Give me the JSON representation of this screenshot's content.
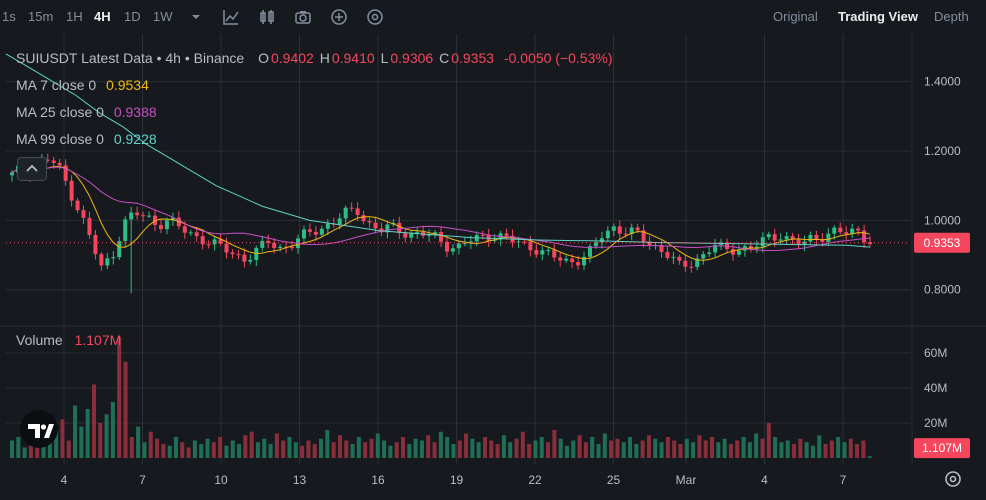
{
  "toolbar": {
    "intervals": [
      "1s",
      "15m",
      "1H",
      "4H",
      "1D",
      "1W"
    ],
    "active_interval": "4H",
    "icons": [
      "chevron-down-icon",
      "indicator-line-icon",
      "candle-icon",
      "camera-icon",
      "plus-circle-icon",
      "settings-circle-icon"
    ],
    "views": [
      "Original",
      "Trading View",
      "Depth"
    ],
    "active_view": "Trading View"
  },
  "legend": {
    "pair": "SUIUSDT Latest Data • 4h • Binance",
    "o_label": "O",
    "o": "0.9402",
    "h_label": "H",
    "h": "0.9410",
    "l_label": "L",
    "l": "0.9306",
    "c_label": "C",
    "c": "0.9353",
    "change": "-0.0050 (−0.53%)",
    "ma7_label": "MA 7 close 0",
    "ma7": "0.9534",
    "ma25_label": "MA 25 close 0",
    "ma25": "0.9388",
    "ma99_label": "MA 99 close 0",
    "ma99": "0.9228",
    "volume_label": "Volume",
    "volume": "1.107M"
  },
  "colors": {
    "background": "#161a1e",
    "up": "#2ebd85",
    "down": "#f6465d",
    "ma7": "#f0b90b",
    "ma25": "#c74ec7",
    "ma99": "#5fd3c8",
    "grid": "#2b2f36"
  },
  "chart_data": [
    {
      "type": "candlestick",
      "price_axis": {
        "ticks": [
          "1.4000",
          "1.2000",
          "1.0000",
          "0.8000"
        ],
        "tick_values": [
          1.4,
          1.2,
          1.0,
          0.8
        ],
        "range": [
          0.73,
          1.52
        ]
      },
      "current_price": "0.9353",
      "x_axis": {
        "ticks": [
          "4",
          "7",
          "10",
          "13",
          "16",
          "19",
          "22",
          "25",
          "Mar",
          "4",
          "7"
        ]
      },
      "close_path": [
        1.13,
        1.15,
        1.14,
        1.18,
        1.16,
        1.1,
        1.03,
        0.95,
        0.86,
        0.9,
        0.99,
        1.02,
        1.01,
        0.99,
        1.0,
        0.98,
        0.96,
        0.95,
        0.93,
        0.92,
        0.9,
        0.89,
        0.91,
        0.94,
        0.92,
        0.93,
        0.95,
        0.97,
        0.98,
        1.0,
        1.02,
        1.03,
        0.99,
        0.97,
        0.98,
        0.97,
        0.96,
        0.96,
        0.95,
        0.93,
        0.92,
        0.94,
        0.95,
        0.96,
        0.95,
        0.94,
        0.93,
        0.92,
        0.9,
        0.89,
        0.88,
        0.89,
        0.91,
        0.96,
        0.98,
        0.97,
        0.96,
        0.94,
        0.92,
        0.9,
        0.86,
        0.88,
        0.9,
        0.93,
        0.91,
        0.92,
        0.92,
        0.93,
        0.95,
        0.96,
        0.94,
        0.93,
        0.95,
        0.96,
        0.97,
        0.96,
        0.97,
        0.94
      ],
      "ma99_path": [
        1.48,
        1.44,
        1.4,
        1.36,
        1.31,
        1.27,
        1.22,
        1.18,
        1.14,
        1.1,
        1.07,
        1.04,
        1.02,
        1.0,
        0.99,
        0.98,
        0.97,
        0.965,
        0.96,
        0.955,
        0.95,
        0.948,
        0.945,
        0.943,
        0.942,
        0.941,
        0.94,
        0.938,
        0.936,
        0.935,
        0.934,
        0.933,
        0.932,
        0.931,
        0.93,
        0.929,
        0.928,
        0.9228
      ]
    },
    {
      "type": "bar",
      "name": "Volume",
      "axis": {
        "ticks": [
          "60M",
          "40M",
          "20M"
        ],
        "tick_values": [
          60,
          40,
          20
        ],
        "range": [
          0,
          72
        ]
      },
      "current": "1.107M",
      "values": [
        10,
        12,
        6,
        8,
        14,
        9,
        11,
        16,
        22,
        10,
        30,
        18,
        28,
        42,
        20,
        25,
        32,
        69,
        55,
        12,
        18,
        9,
        15,
        11,
        8,
        7,
        12,
        9,
        6,
        10,
        8,
        11,
        9,
        12,
        7,
        10,
        8,
        13,
        15,
        9,
        11,
        8,
        14,
        10,
        12,
        9,
        7,
        10,
        8,
        11,
        16,
        9,
        13,
        10,
        8,
        12,
        9,
        11,
        14,
        10,
        7,
        9,
        12,
        8,
        11,
        10,
        13,
        9,
        15,
        12,
        8,
        10,
        14,
        11,
        9,
        12,
        10,
        8,
        13,
        9,
        11,
        15,
        8,
        10,
        12,
        9,
        16,
        11,
        7,
        10,
        13,
        9,
        12,
        8,
        14,
        10,
        11,
        9,
        12,
        8,
        10,
        13,
        11,
        9,
        12,
        10,
        8,
        11,
        9,
        13,
        10,
        12,
        9,
        11,
        8,
        10,
        12,
        9,
        14,
        11,
        20,
        12,
        9,
        10,
        8,
        11,
        9,
        7,
        13,
        8,
        10,
        12,
        9,
        11,
        8,
        10,
        1
      ]
    }
  ]
}
